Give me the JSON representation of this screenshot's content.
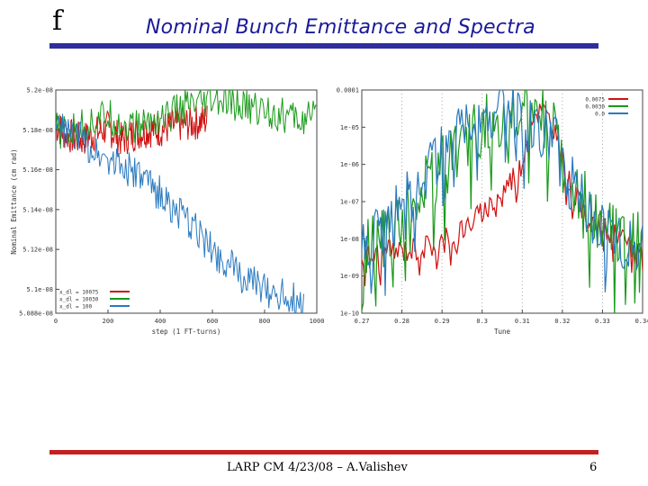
{
  "slide": {
    "logo_glyph": "f",
    "title": "Nominal Bunch Emittance and Spectra",
    "footer": "LARP CM 4/23/08 – A.Valishev",
    "page_number": "6",
    "title_color": "#1a1a9a",
    "top_rule_color": "#2e2e9e",
    "bottom_rule_color": "#c42020"
  },
  "chart_data": [
    {
      "type": "line",
      "xlabel": "step (1 FT-turns)",
      "ylabel": "Nominal Emittance (cm rad)",
      "xlim": [
        0,
        1000
      ],
      "ylim": [
        5.088e-08,
        5.2e-08
      ],
      "x_ticks": [
        "0",
        "200",
        "400",
        "600",
        "800",
        "1000"
      ],
      "y_ticks": [
        "5.088e-08",
        "5.1e-08",
        "5.12e-08",
        "5.14e-08",
        "5.16e-08",
        "5.18e-08",
        "5.2e-08"
      ],
      "y_tick_values": [
        5.088e-08,
        5.1e-08,
        5.12e-08,
        5.14e-08,
        5.16e-08,
        5.18e-08,
        5.2e-08
      ],
      "legend_position": "bottom-left",
      "series": [
        {
          "name": "x_dl = 10075",
          "color": "#d01010",
          "x": [
            0,
            50,
            100,
            150,
            200,
            250,
            300,
            350,
            400,
            450,
            500,
            550,
            580
          ],
          "y": [
            5.182e-08,
            5.177e-08,
            5.175e-08,
            5.178e-08,
            5.181e-08,
            5.175e-08,
            5.178e-08,
            5.18e-08,
            5.18e-08,
            5.182e-08,
            5.183e-08,
            5.184e-08,
            5.185e-08
          ]
        },
        {
          "name": "x_dl = 10030",
          "color": "#1a9a1a",
          "x": [
            0,
            50,
            100,
            150,
            200,
            250,
            300,
            350,
            400,
            450,
            500,
            550,
            600,
            650,
            700,
            750,
            800,
            850,
            900,
            950,
            1000
          ],
          "y": [
            5.18e-08,
            5.178e-08,
            5.182e-08,
            5.185e-08,
            5.187e-08,
            5.183e-08,
            5.181e-08,
            5.184e-08,
            5.186e-08,
            5.188e-08,
            5.192e-08,
            5.191e-08,
            5.194e-08,
            5.193e-08,
            5.192e-08,
            5.191e-08,
            5.19e-08,
            5.188e-08,
            5.186e-08,
            5.185e-08,
            5.186e-08
          ]
        },
        {
          "name": "x_dl = 100",
          "color": "#2a7ac0",
          "x": [
            0,
            50,
            100,
            150,
            200,
            250,
            300,
            350,
            400,
            450,
            500,
            550,
            600,
            650,
            700,
            750,
            800,
            850,
            900,
            950
          ],
          "y": [
            5.182e-08,
            5.178e-08,
            5.175e-08,
            5.17e-08,
            5.166e-08,
            5.163e-08,
            5.158e-08,
            5.153e-08,
            5.148e-08,
            5.14e-08,
            5.134e-08,
            5.128e-08,
            5.12e-08,
            5.114e-08,
            5.108e-08,
            5.103e-08,
            5.1e-08,
            5.098e-08,
            5.096e-08,
            5.092e-08
          ]
        }
      ]
    },
    {
      "type": "line",
      "xlabel": "Tune",
      "ylabel": "",
      "log_y": true,
      "xlim": [
        0.27,
        0.34
      ],
      "ylim": [
        1e-10,
        0.0001
      ],
      "x_ticks": [
        "0.27",
        "0.28",
        "0.29",
        "0.3",
        "0.31",
        "0.32",
        "0.33",
        "0.34"
      ],
      "y_ticks": [
        "1e-10",
        "1e-09",
        "1e-08",
        "1e-07",
        "1e-06",
        "1e-05",
        "0.0001"
      ],
      "y_tick_values": [
        1e-10,
        1e-09,
        1e-08,
        1e-07,
        1e-06,
        1e-05,
        0.0001
      ],
      "legend_position": "top-right",
      "grid": "vertical dotted",
      "series": [
        {
          "name": "0.0075",
          "color": "#d01010",
          "x": [
            0.27,
            0.275,
            0.28,
            0.285,
            0.29,
            0.295,
            0.3,
            0.305,
            0.31,
            0.312,
            0.315,
            0.318,
            0.32,
            0.325,
            0.33,
            0.335,
            0.34
          ],
          "y": [
            3e-09,
            4e-09,
            5e-09,
            6e-09,
            8e-09,
            2e-08,
            5e-08,
            2e-07,
            1e-06,
            2e-05,
            3e-05,
            1e-05,
            1e-06,
            5e-08,
            2e-08,
            8e-09,
            5e-09
          ]
        },
        {
          "name": "0.0030",
          "color": "#1a9a1a",
          "x": [
            0.27,
            0.275,
            0.28,
            0.285,
            0.29,
            0.295,
            0.3,
            0.305,
            0.31,
            0.312,
            0.315,
            0.318,
            0.32,
            0.325,
            0.33,
            0.335,
            0.34
          ],
          "y": [
            3e-09,
            1e-08,
            5e-08,
            2e-07,
            8e-07,
            3e-06,
            1e-05,
            2e-05,
            3e-05,
            5e-05,
            2e-05,
            8e-06,
            1e-06,
            1e-07,
            3e-08,
            5e-09,
            1e-08
          ]
        },
        {
          "name": "0.0",
          "color": "#2a7ac0",
          "x": [
            0.27,
            0.275,
            0.28,
            0.285,
            0.29,
            0.295,
            0.3,
            0.305,
            0.31,
            0.312,
            0.315,
            0.318,
            0.32,
            0.325,
            0.33,
            0.335,
            0.34
          ],
          "y": [
            5e-09,
            2e-08,
            1e-07,
            5e-07,
            2e-06,
            8e-06,
            2e-05,
            3e-05,
            2e-05,
            1e-05,
            1e-05,
            5e-06,
            1e-06,
            1e-07,
            2e-08,
            1e-08,
            5e-09
          ]
        }
      ]
    }
  ]
}
